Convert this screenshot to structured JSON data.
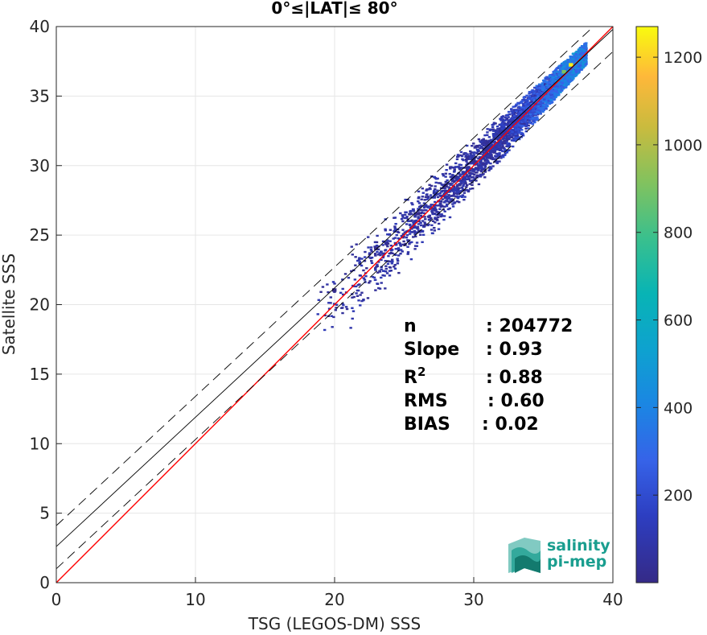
{
  "chart_data": {
    "type": "heatmap",
    "title": "0°≤|LAT|≤ 80°",
    "xlabel": "TSG (LEGOS-DM) SSS",
    "ylabel": "Satellite SSS",
    "xlim": [
      0,
      40
    ],
    "ylim": [
      0,
      40
    ],
    "x_ticks": [
      "0",
      "10",
      "20",
      "30",
      "40"
    ],
    "y_ticks": [
      "0",
      "5",
      "10",
      "15",
      "20",
      "25",
      "30",
      "35",
      "40"
    ],
    "grid": true,
    "colorbar": {
      "range": [
        0,
        1270
      ],
      "ticks": [
        "200",
        "400",
        "600",
        "800",
        "1000",
        "1200"
      ],
      "colormap": "parula"
    },
    "lines": [
      {
        "kind": "one-to-one",
        "color": "#ff0000",
        "style": "solid",
        "slope": 1.0,
        "intercept": 0.0
      },
      {
        "kind": "fit",
        "color": "#000000",
        "style": "solid",
        "slope": 0.93,
        "intercept": 2.6
      },
      {
        "kind": "fit-upper",
        "color": "#000000",
        "style": "dashed",
        "slope": 0.93,
        "intercept": 4.1
      },
      {
        "kind": "fit-lower",
        "color": "#000000",
        "style": "dashed",
        "slope": 0.93,
        "intercept": 1.0
      }
    ],
    "density_core": [
      {
        "x": 37.0,
        "y": 37.2,
        "count": 1250
      },
      {
        "x": 36.5,
        "y": 36.7,
        "count": 900
      },
      {
        "x": 36.0,
        "y": 36.0,
        "count": 450
      },
      {
        "x": 35.5,
        "y": 35.6,
        "count": 300
      },
      {
        "x": 35.0,
        "y": 35.1,
        "count": 250
      },
      {
        "x": 34.0,
        "y": 34.0,
        "count": 180
      },
      {
        "x": 33.0,
        "y": 33.1,
        "count": 120
      },
      {
        "x": 32.0,
        "y": 32.2,
        "count": 80
      },
      {
        "x": 31.0,
        "y": 31.2,
        "count": 50
      },
      {
        "x": 30.0,
        "y": 30.3,
        "count": 30
      },
      {
        "x": 28.0,
        "y": 28.5,
        "count": 15
      },
      {
        "x": 26.0,
        "y": 26.5,
        "count": 8
      },
      {
        "x": 23.0,
        "y": 24.0,
        "count": 4
      },
      {
        "x": 20.0,
        "y": 21.0,
        "count": 2
      }
    ],
    "stats": {
      "rows": [
        {
          "label": "n",
          "value": ": 204772"
        },
        {
          "label": "Slope",
          "value": ": 0.93"
        },
        {
          "label": "R",
          "sup": "2",
          "value": ": 0.88"
        },
        {
          "label": "RMS",
          "value": ": 0.60"
        },
        {
          "label": "BIAS",
          "value": ": 0.02"
        }
      ]
    },
    "logo": {
      "line1": "salinity",
      "line2": "pi-mep"
    }
  }
}
